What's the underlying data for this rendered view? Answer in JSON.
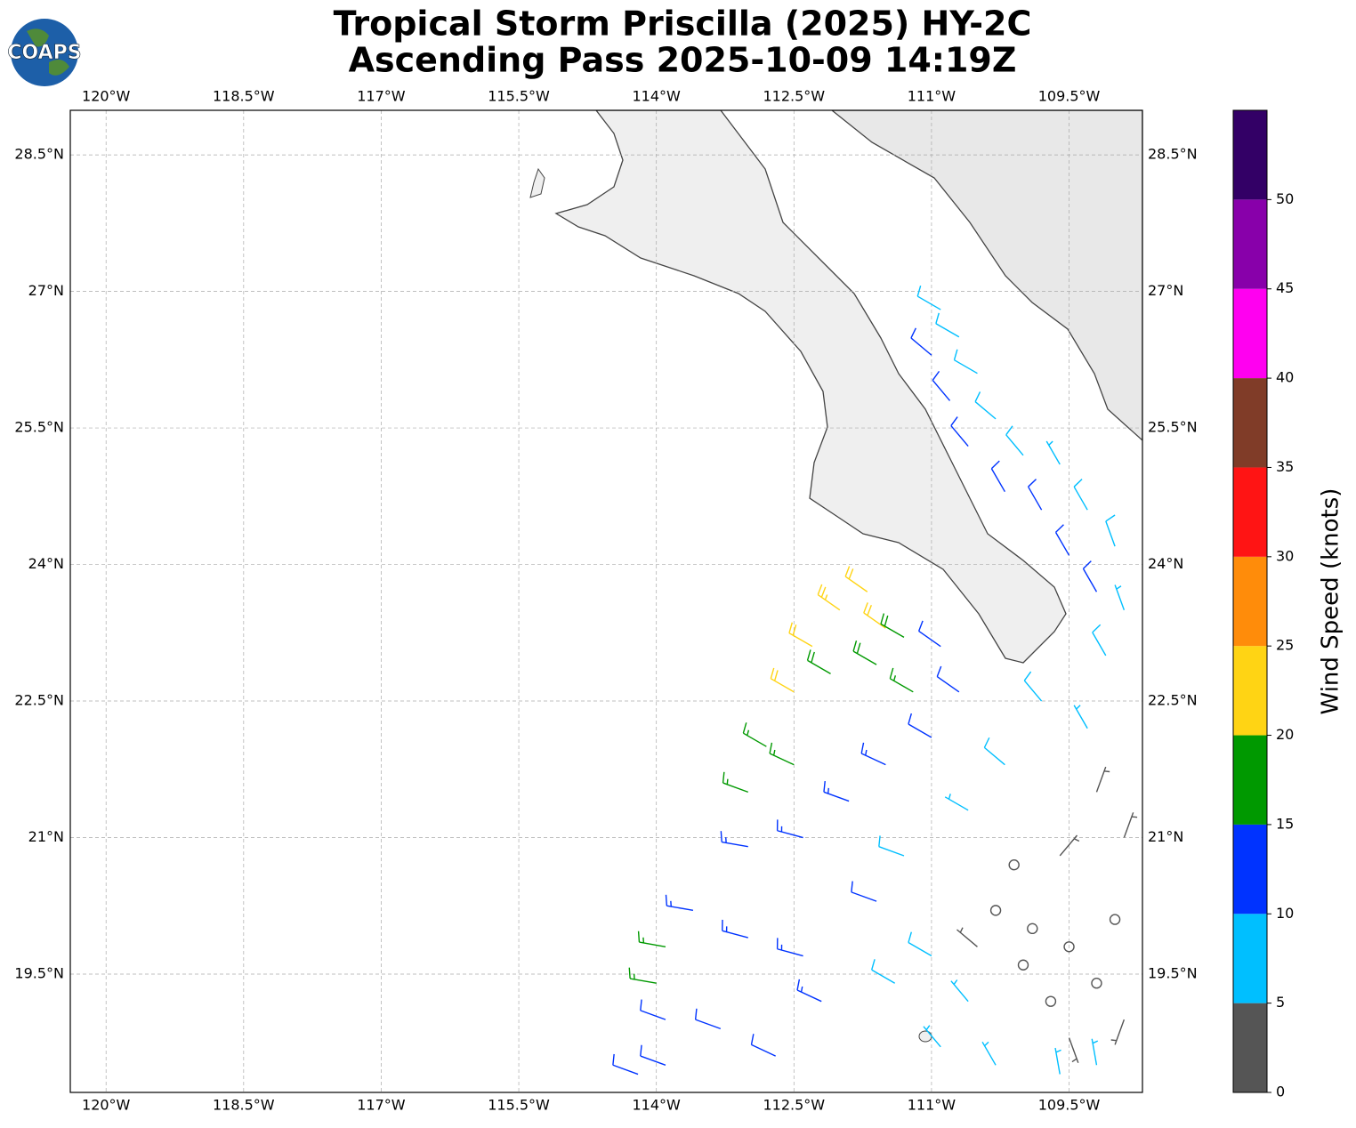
{
  "chart_data": {
    "type": "wind-barb-map",
    "logo": "COAPS",
    "title": "Tropical Storm Priscilla (2025) HY-2C",
    "subtitle": "Ascending Pass 2025-10-09 14:19Z",
    "xlim": [
      -120.39,
      -108.7
    ],
    "ylim": [
      18.2,
      28.99
    ],
    "xticks": [
      {
        "value": -120,
        "label": "120°W"
      },
      {
        "value": -118.5,
        "label": "118.5°W"
      },
      {
        "value": -117,
        "label": "117°W"
      },
      {
        "value": -115.5,
        "label": "115.5°W"
      },
      {
        "value": -114,
        "label": "114°W"
      },
      {
        "value": -112.5,
        "label": "112.5°W"
      },
      {
        "value": -111,
        "label": "111°W"
      },
      {
        "value": -109.5,
        "label": "109.5°W"
      }
    ],
    "yticks": [
      {
        "value": 19.5,
        "label": "19.5°N"
      },
      {
        "value": 21,
        "label": "21°N"
      },
      {
        "value": 22.5,
        "label": "22.5°N"
      },
      {
        "value": 24,
        "label": "24°N"
      },
      {
        "value": 25.5,
        "label": "25.5°N"
      },
      {
        "value": 27,
        "label": "27°N"
      },
      {
        "value": 28.5,
        "label": "28.5°N"
      }
    ],
    "grid": true,
    "colorbar": {
      "label": "Wind Speed (knots)",
      "lim": [
        0,
        55
      ],
      "bounds": [
        0,
        5,
        10,
        15,
        20,
        25,
        30,
        35,
        40,
        45,
        50,
        55
      ],
      "colors": [
        "#555555",
        "#00bfff",
        "#0033ff",
        "#009900",
        "#ffd414",
        "#ff8c0a",
        "#ff1414",
        "#803c28",
        "#ff00f0",
        "#8800aa",
        "#330066"
      ],
      "ticks": [
        0,
        5,
        10,
        15,
        20,
        25,
        30,
        35,
        40,
        45,
        50
      ]
    },
    "barbs": {
      "x": [
        -110.9,
        -110.7,
        -111.0,
        -110.5,
        -110.8,
        -110.3,
        -110.6,
        -110.0,
        -109.6,
        -110.2,
        -109.8,
        -109.3,
        -109.5,
        -109.0,
        -108.9,
        -109.2,
        -109.1,
        -112.5,
        -112.3,
        -112.0,
        -111.7,
        -111.5,
        -112.1,
        -111.6,
        -111.3,
        -112.8,
        -113.0,
        -112.5,
        -111.2,
        -113.0,
        -112.4,
        -111.9,
        -111.5,
        -111.0,
        -110.7,
        -110.9,
        -113.6,
        -113.0,
        -112.4,
        -113.9,
        -113.3,
        -112.7,
        -113.9,
        -114.2,
        -112.2,
        -111.6,
        -113.9,
        -114.0,
        -111.3,
        -110.6,
        -110.2,
        -109.8,
        -109.3,
        -111.0,
        -110.6,
        -111.4,
        -110.9,
        -110.3,
        -109.6,
        -109.2,
        -109.5,
        -109.9,
        -110.3,
        -109.0,
        -109.2,
        -108.9,
        -109.6,
        -110.1,
        -109.7,
        -110.0,
        -108.9,
        -109.5,
        -110.5,
        -109.2
      ],
      "y": [
        26.8,
        26.5,
        26.3,
        26.1,
        25.8,
        25.6,
        25.3,
        25.2,
        25.1,
        24.8,
        24.6,
        24.6,
        24.1,
        24.2,
        23.5,
        23.7,
        23.0,
        22.6,
        23.1,
        23.5,
        23.7,
        23.3,
        22.8,
        22.9,
        23.2,
        22.0,
        21.5,
        21.8,
        22.6,
        20.9,
        21.0,
        21.4,
        21.8,
        22.1,
        22.6,
        23.1,
        20.2,
        19.9,
        19.7,
        19.0,
        18.9,
        18.6,
        18.5,
        18.4,
        19.2,
        20.3,
        19.8,
        19.4,
        20.8,
        21.3,
        21.8,
        22.5,
        22.2,
        19.7,
        19.2,
        19.4,
        18.7,
        18.5,
        18.4,
        18.5,
        19.8,
        20.0,
        20.2,
        20.1,
        19.4,
        21.0,
        20.8,
        20.7,
        19.2,
        19.6,
        19.0,
        18.8,
        19.8,
        21.5
      ],
      "values": [
        8,
        9,
        12,
        8,
        12,
        9,
        12,
        9,
        7,
        12,
        11,
        8,
        12,
        8,
        7,
        11,
        8,
        22,
        22,
        23,
        22,
        21,
        18,
        18,
        18,
        17,
        17,
        17,
        16,
        13,
        13,
        13,
        13,
        12,
        12,
        12,
        13,
        14,
        13,
        12,
        12,
        12,
        11,
        12,
        13,
        12,
        16,
        16,
        8,
        7,
        8,
        8,
        6,
        8,
        7,
        9,
        7,
        6,
        6,
        7,
        0,
        0,
        2,
        0,
        0,
        3,
        3,
        2,
        0,
        0,
        3,
        4,
        3,
        4
      ],
      "directions": [
        300,
        300,
        310,
        300,
        320,
        310,
        320,
        320,
        330,
        330,
        330,
        330,
        330,
        340,
        340,
        330,
        330,
        300,
        300,
        305,
        305,
        305,
        300,
        300,
        300,
        300,
        290,
        295,
        300,
        280,
        285,
        290,
        295,
        300,
        305,
        305,
        280,
        285,
        285,
        290,
        290,
        295,
        290,
        290,
        295,
        290,
        280,
        280,
        290,
        300,
        310,
        320,
        330,
        300,
        320,
        300,
        320,
        330,
        350,
        350,
        0,
        0,
        340,
        0,
        0,
        20,
        40,
        60,
        0,
        0,
        200,
        160,
        310,
        20
      ]
    }
  }
}
